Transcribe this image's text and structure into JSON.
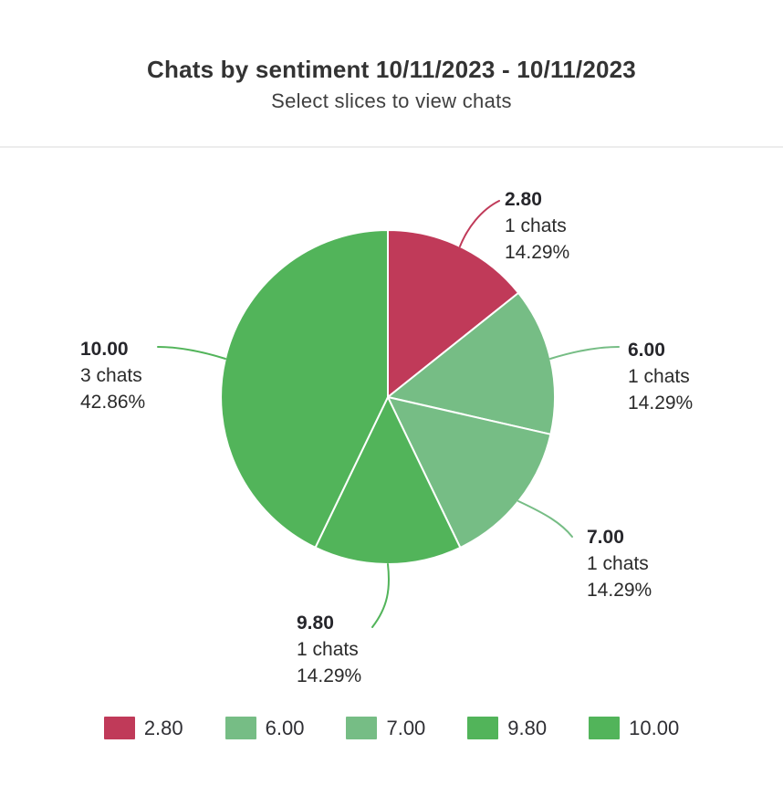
{
  "header": {
    "title": "Chats by sentiment 10/11/2023 - 10/11/2023",
    "subtitle": "Select slices to view chats"
  },
  "chart_data": {
    "type": "pie",
    "title": "Chats by sentiment 10/11/2023 - 10/11/2023",
    "subtitle": "Select slices to view chats",
    "unit": "chats",
    "legend_position": "bottom",
    "start_angle": "top",
    "direction": "clockwise",
    "slices": [
      {
        "label": "2.80",
        "value": 1,
        "chats_label": "1 chats",
        "percent": 14.29,
        "percent_label": "14.29%",
        "color": "#c03a59"
      },
      {
        "label": "6.00",
        "value": 1,
        "chats_label": "1 chats",
        "percent": 14.29,
        "percent_label": "14.29%",
        "color": "#76bd85"
      },
      {
        "label": "7.00",
        "value": 1,
        "chats_label": "1 chats",
        "percent": 14.29,
        "percent_label": "14.29%",
        "color": "#76bd85"
      },
      {
        "label": "9.80",
        "value": 1,
        "chats_label": "1 chats",
        "percent": 14.29,
        "percent_label": "14.29%",
        "color": "#52b45a"
      },
      {
        "label": "10.00",
        "value": 3,
        "chats_label": "3 chats",
        "percent": 42.86,
        "percent_label": "42.86%",
        "color": "#52b45a"
      }
    ],
    "legend": [
      "2.80",
      "6.00",
      "7.00",
      "9.80",
      "10.00"
    ]
  }
}
